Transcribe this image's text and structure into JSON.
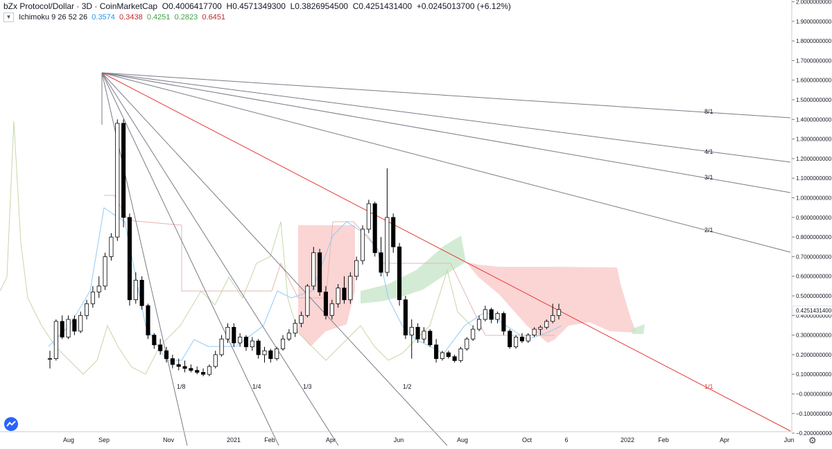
{
  "header": {
    "symbol": "bZx Protocol/Dollar · 3D · CoinMarketCap",
    "open_label": "O",
    "open": "0.4006417700",
    "high_label": "H",
    "high": "0.4571349300",
    "low_label": "L",
    "low": "0.3826954500",
    "close_label": "C",
    "close": "0.4251431400",
    "change": "+0.0245013700 (+6.12%)"
  },
  "indicator": {
    "collapse_icon": "chevron-down-icon",
    "name": "Ichimoku 9 26 52 26",
    "v1": "0.3574",
    "v2": "0.3438",
    "v3": "0.4251",
    "v4": "0.2823",
    "v5": "0.6451",
    "c1": "#2196f3",
    "c2": "#c62828",
    "c3": "#43a047",
    "c4": "#43a047",
    "c5": "#c62828"
  },
  "chart_data": {
    "type": "candlestick",
    "title": "bZx Protocol/Dollar · 3D · CoinMarketCap",
    "last_price_label": "0.4251431400",
    "y_ticks": [
      "2.0000000000",
      "1.9000000000",
      "1.8000000000",
      "1.7000000000",
      "1.6000000000",
      "1.5000000000",
      "1.4000000000",
      "1.3000000000",
      "1.2000000000",
      "1.1000000000",
      "1.0000000000",
      "0.9000000000",
      "0.8000000000",
      "0.7000000000",
      "0.6000000000",
      "0.5000000000",
      "0.4000000000",
      "0.3000000000",
      "0.2000000000",
      "0.1000000000",
      "−0.0000000000",
      "−0.1000000000",
      "−0.2000000000"
    ],
    "y_values": [
      2.0,
      1.9,
      1.8,
      1.7,
      1.6,
      1.5,
      1.4,
      1.3,
      1.2,
      1.1,
      1.0,
      0.9,
      0.8,
      0.7,
      0.6,
      0.5,
      0.4,
      0.3,
      0.2,
      0.1,
      0.0,
      -0.1,
      -0.2
    ],
    "ylim": [
      -0.2,
      2.0
    ],
    "x_ticks": [
      "Aug",
      "Sep",
      "Nov",
      "2021",
      "Feb",
      "Apr",
      "Jun",
      "Aug",
      "Oct",
      "6",
      "2022",
      "Feb",
      "Apr",
      "Jun"
    ],
    "fan_labels": [
      "8/1",
      "4/1",
      "3/1",
      "2/1",
      "1/1",
      "1/2",
      "1/3",
      "1/4",
      "1/8"
    ],
    "colors": {
      "up": "#ffffff",
      "down": "#000000",
      "wick": "#000000",
      "fan": "#787b86",
      "fan_main": "#e53935",
      "cloud_bear": "#f8c7c5",
      "cloud_bull": "#c8e6c9",
      "tenkan": "#90caf9",
      "kijun": "#e8b4b2",
      "chikou": "#c5d7a8",
      "grid": "#ffffff",
      "axis_text": "#131722"
    },
    "candles": [
      [
        0.18,
        0.22,
        0.13,
        0.18
      ],
      [
        0.18,
        0.38,
        0.17,
        0.37
      ],
      [
        0.37,
        0.4,
        0.28,
        0.29
      ],
      [
        0.29,
        0.4,
        0.28,
        0.38
      ],
      [
        0.38,
        0.4,
        0.3,
        0.32
      ],
      [
        0.32,
        0.42,
        0.31,
        0.4
      ],
      [
        0.4,
        0.48,
        0.38,
        0.46
      ],
      [
        0.46,
        0.55,
        0.44,
        0.52
      ],
      [
        0.52,
        0.6,
        0.49,
        0.55
      ],
      [
        0.55,
        0.72,
        0.53,
        0.7
      ],
      [
        0.7,
        0.82,
        0.68,
        0.8
      ],
      [
        0.8,
        1.4,
        0.78,
        1.38
      ],
      [
        1.38,
        1.4,
        0.85,
        0.9
      ],
      [
        0.9,
        0.92,
        0.45,
        0.48
      ],
      [
        0.48,
        0.62,
        0.46,
        0.58
      ],
      [
        0.58,
        0.6,
        0.43,
        0.45
      ],
      [
        0.45,
        0.46,
        0.28,
        0.3
      ],
      [
        0.3,
        0.31,
        0.23,
        0.25
      ],
      [
        0.25,
        0.28,
        0.2,
        0.22
      ],
      [
        0.22,
        0.24,
        0.16,
        0.18
      ],
      [
        0.18,
        0.2,
        0.13,
        0.15
      ],
      [
        0.15,
        0.18,
        0.12,
        0.14
      ],
      [
        0.14,
        0.17,
        0.11,
        0.13
      ],
      [
        0.13,
        0.15,
        0.11,
        0.12
      ],
      [
        0.12,
        0.14,
        0.1,
        0.11
      ],
      [
        0.11,
        0.13,
        0.09,
        0.1
      ],
      [
        0.1,
        0.15,
        0.09,
        0.14
      ],
      [
        0.14,
        0.22,
        0.13,
        0.2
      ],
      [
        0.2,
        0.3,
        0.19,
        0.28
      ],
      [
        0.28,
        0.36,
        0.26,
        0.34
      ],
      [
        0.34,
        0.36,
        0.24,
        0.26
      ],
      [
        0.26,
        0.31,
        0.24,
        0.29
      ],
      [
        0.29,
        0.3,
        0.22,
        0.24
      ],
      [
        0.24,
        0.29,
        0.22,
        0.27
      ],
      [
        0.27,
        0.28,
        0.18,
        0.2
      ],
      [
        0.2,
        0.24,
        0.16,
        0.22
      ],
      [
        0.22,
        0.23,
        0.16,
        0.18
      ],
      [
        0.18,
        0.24,
        0.17,
        0.23
      ],
      [
        0.23,
        0.3,
        0.22,
        0.28
      ],
      [
        0.28,
        0.33,
        0.27,
        0.31
      ],
      [
        0.31,
        0.38,
        0.29,
        0.36
      ],
      [
        0.36,
        0.42,
        0.34,
        0.4
      ],
      [
        0.4,
        0.56,
        0.39,
        0.55
      ],
      [
        0.55,
        0.75,
        0.53,
        0.72
      ],
      [
        0.72,
        0.74,
        0.5,
        0.52
      ],
      [
        0.52,
        0.55,
        0.38,
        0.4
      ],
      [
        0.4,
        0.48,
        0.38,
        0.46
      ],
      [
        0.46,
        0.56,
        0.44,
        0.54
      ],
      [
        0.54,
        0.6,
        0.46,
        0.48
      ],
      [
        0.48,
        0.62,
        0.46,
        0.6
      ],
      [
        0.6,
        0.7,
        0.58,
        0.68
      ],
      [
        0.68,
        0.86,
        0.66,
        0.84
      ],
      [
        0.84,
        0.99,
        0.82,
        0.97
      ],
      [
        0.97,
        0.98,
        0.7,
        0.72
      ],
      [
        0.72,
        0.8,
        0.6,
        0.62
      ],
      [
        0.62,
        1.15,
        0.6,
        0.9
      ],
      [
        0.9,
        0.92,
        0.72,
        0.75
      ],
      [
        0.75,
        0.77,
        0.45,
        0.48
      ],
      [
        0.48,
        0.5,
        0.28,
        0.3
      ],
      [
        0.3,
        0.38,
        0.18,
        0.34
      ],
      [
        0.34,
        0.36,
        0.26,
        0.28
      ],
      [
        0.28,
        0.34,
        0.26,
        0.32
      ],
      [
        0.32,
        0.33,
        0.24,
        0.25
      ],
      [
        0.25,
        0.28,
        0.16,
        0.18
      ],
      [
        0.18,
        0.22,
        0.17,
        0.21
      ],
      [
        0.21,
        0.22,
        0.18,
        0.19
      ],
      [
        0.19,
        0.2,
        0.16,
        0.17
      ],
      [
        0.17,
        0.24,
        0.16,
        0.23
      ],
      [
        0.23,
        0.29,
        0.22,
        0.28
      ],
      [
        0.28,
        0.35,
        0.27,
        0.33
      ],
      [
        0.33,
        0.4,
        0.32,
        0.38
      ],
      [
        0.38,
        0.45,
        0.37,
        0.43
      ],
      [
        0.43,
        0.44,
        0.36,
        0.38
      ],
      [
        0.38,
        0.42,
        0.36,
        0.41
      ],
      [
        0.41,
        0.42,
        0.3,
        0.32
      ],
      [
        0.32,
        0.33,
        0.23,
        0.24
      ],
      [
        0.24,
        0.3,
        0.23,
        0.29
      ],
      [
        0.29,
        0.31,
        0.26,
        0.27
      ],
      [
        0.27,
        0.31,
        0.26,
        0.3
      ],
      [
        0.3,
        0.34,
        0.29,
        0.33
      ],
      [
        0.33,
        0.35,
        0.3,
        0.34
      ],
      [
        0.34,
        0.38,
        0.33,
        0.37
      ],
      [
        0.37,
        0.46,
        0.36,
        0.4
      ],
      [
        0.4,
        0.46,
        0.38,
        0.43
      ]
    ],
    "fans": [
      {
        "label": "8/1",
        "end": [
          1140,
          170
        ]
      },
      {
        "label": "4/1",
        "end": [
          1140,
          234
        ]
      },
      {
        "label": "3/1",
        "end": [
          1140,
          278
        ]
      },
      {
        "label": "2/1",
        "end": [
          1140,
          364
        ]
      },
      {
        "label": "1/1",
        "end": [
          1140,
          622
        ]
      },
      {
        "label": "1/2",
        "end": [
          645,
          643
        ]
      },
      {
        "label": "1/3",
        "end": [
          488,
          643
        ]
      },
      {
        "label": "1/4",
        "end": [
          402,
          643
        ]
      },
      {
        "label": "1/8",
        "end": [
          270,
          643
        ]
      }
    ]
  }
}
